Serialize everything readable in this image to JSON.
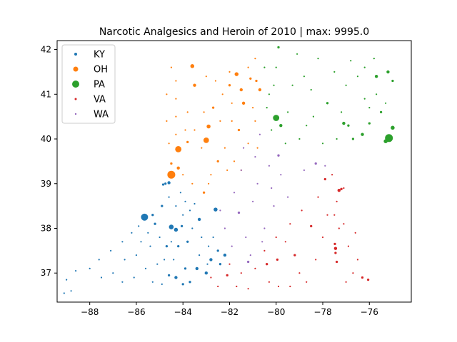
{
  "chart_data": {
    "type": "scatter",
    "title": "Narcotic Analgesics and Heroin of 2010 | max: 9995.0",
    "xlabel": "",
    "ylabel": "",
    "xlim": [
      -89.4,
      -74.2
    ],
    "ylim": [
      36.35,
      42.2
    ],
    "x_ticks": [
      -88,
      -86,
      -84,
      -82,
      -80,
      -78,
      -76
    ],
    "x_tick_labels": [
      "−88",
      "−86",
      "−84",
      "−82",
      "−80",
      "−78",
      "−76"
    ],
    "y_ticks": [
      37,
      38,
      39,
      40,
      41,
      42
    ],
    "y_tick_labels": [
      "37",
      "38",
      "39",
      "40",
      "41",
      "42"
    ],
    "grid": false,
    "legend_position": "upper-left",
    "size_note": "marker size proportional to value (max 9995.0)",
    "series": [
      {
        "name": "KY",
        "color": "#1f77b4",
        "points": [
          [
            -85.65,
            38.25,
            9
          ],
          [
            -84.5,
            38.03,
            6
          ],
          [
            -84.3,
            37.97,
            5
          ],
          [
            -84.6,
            39.02,
            4
          ],
          [
            -84.75,
            39.0,
            3
          ],
          [
            -84.85,
            38.98,
            3
          ],
          [
            -84.9,
            38.5,
            3
          ],
          [
            -85.3,
            38.3,
            3
          ],
          [
            -83.3,
            38.2,
            4
          ],
          [
            -82.6,
            38.42,
            5
          ],
          [
            -82.2,
            37.4,
            4
          ],
          [
            -82.5,
            37.5,
            3
          ],
          [
            -82.8,
            37.3,
            4
          ],
          [
            -83.0,
            37.0,
            4
          ],
          [
            -83.4,
            37.1,
            4
          ],
          [
            -83.9,
            37.1,
            3
          ],
          [
            -84.3,
            36.9,
            4
          ],
          [
            -84.6,
            36.95,
            3
          ],
          [
            -84.0,
            36.75,
            3
          ],
          [
            -83.7,
            36.8,
            3
          ],
          [
            -85.2,
            38.1,
            3
          ],
          [
            -85.5,
            37.9,
            2
          ],
          [
            -85.8,
            37.7,
            2
          ],
          [
            -86.0,
            37.4,
            2
          ],
          [
            -86.5,
            37.3,
            2
          ],
          [
            -87.0,
            37.0,
            2
          ],
          [
            -87.5,
            36.9,
            2
          ],
          [
            -88.0,
            37.1,
            2
          ],
          [
            -88.6,
            37.05,
            2
          ],
          [
            -88.8,
            36.6,
            2
          ],
          [
            -89.1,
            36.55,
            2
          ],
          [
            -89.0,
            36.85,
            2
          ],
          [
            -87.6,
            37.3,
            2
          ],
          [
            -87.1,
            37.5,
            2
          ],
          [
            -86.6,
            37.7,
            2
          ],
          [
            -86.2,
            37.9,
            2
          ],
          [
            -85.9,
            38.05,
            2
          ],
          [
            -85.4,
            37.6,
            2
          ],
          [
            -85.0,
            37.8,
            2
          ],
          [
            -84.7,
            37.6,
            3
          ],
          [
            -84.2,
            37.6,
            3
          ],
          [
            -83.8,
            37.7,
            3
          ],
          [
            -83.6,
            38.0,
            2
          ],
          [
            -83.2,
            37.8,
            2
          ],
          [
            -82.9,
            37.6,
            2
          ],
          [
            -82.7,
            37.8,
            2
          ],
          [
            -82.4,
            37.2,
            3
          ],
          [
            -83.7,
            38.4,
            2
          ],
          [
            -84.0,
            38.3,
            2
          ],
          [
            -84.3,
            38.5,
            2
          ],
          [
            -84.6,
            38.7,
            2
          ],
          [
            -84.1,
            38.8,
            2
          ],
          [
            -83.9,
            38.6,
            2
          ],
          [
            -83.5,
            38.55,
            2
          ],
          [
            -85.1,
            37.2,
            2
          ],
          [
            -85.6,
            37.1,
            2
          ],
          [
            -86.1,
            36.9,
            2
          ],
          [
            -86.6,
            36.8,
            2
          ],
          [
            -85.3,
            36.8,
            2
          ],
          [
            -84.9,
            36.75,
            2
          ],
          [
            -84.4,
            37.3,
            2
          ],
          [
            -84.8,
            37.3,
            2
          ],
          [
            -83.3,
            37.4,
            2
          ],
          [
            -82.95,
            37.2,
            2
          ],
          [
            -84.05,
            38.05,
            3
          ],
          [
            -84.5,
            37.7,
            2
          ]
        ]
      },
      {
        "name": "OH",
        "color": "#ff7f0e",
        "points": [
          [
            -84.5,
            39.2,
            10
          ],
          [
            -84.2,
            39.77,
            8
          ],
          [
            -83.0,
            39.97,
            7
          ],
          [
            -81.7,
            41.45,
            5
          ],
          [
            -83.6,
            41.63,
            5
          ],
          [
            -83.5,
            41.2,
            4
          ],
          [
            -81.5,
            41.1,
            4
          ],
          [
            -80.7,
            41.1,
            4
          ],
          [
            -81.4,
            40.8,
            4
          ],
          [
            -82.9,
            40.28,
            5
          ],
          [
            -84.2,
            39.35,
            4
          ],
          [
            -84.5,
            39.45,
            3
          ],
          [
            -83.8,
            39.93,
            3
          ],
          [
            -82.5,
            39.5,
            3
          ],
          [
            -81.6,
            40.2,
            3
          ],
          [
            -82.0,
            41.2,
            3
          ],
          [
            -80.85,
            41.3,
            3
          ],
          [
            -82.7,
            40.7,
            3
          ],
          [
            -84.3,
            41.3,
            2
          ],
          [
            -84.3,
            40.9,
            2
          ],
          [
            -84.3,
            40.5,
            2
          ],
          [
            -84.3,
            40.1,
            2
          ],
          [
            -83.8,
            40.6,
            2
          ],
          [
            -83.5,
            40.2,
            2
          ],
          [
            -83.2,
            39.8,
            2
          ],
          [
            -82.8,
            39.2,
            2
          ],
          [
            -82.1,
            39.3,
            2
          ],
          [
            -81.8,
            39.5,
            2
          ],
          [
            -81.2,
            39.9,
            2
          ],
          [
            -80.9,
            40.4,
            2
          ],
          [
            -81.0,
            40.7,
            2
          ],
          [
            -81.9,
            40.8,
            2
          ],
          [
            -82.3,
            41.0,
            2
          ],
          [
            -82.6,
            41.3,
            2
          ],
          [
            -83.0,
            41.4,
            2
          ],
          [
            -84.5,
            41.6,
            2
          ],
          [
            -83.1,
            38.8,
            3
          ],
          [
            -82.9,
            39.0,
            2
          ],
          [
            -83.6,
            39.0,
            2
          ],
          [
            -84.0,
            39.2,
            2
          ],
          [
            -82.2,
            39.8,
            2
          ],
          [
            -81.5,
            39.3,
            2
          ],
          [
            -80.8,
            39.8,
            2
          ],
          [
            -81.9,
            40.4,
            2
          ],
          [
            -82.4,
            40.4,
            2
          ],
          [
            -83.1,
            40.6,
            2
          ],
          [
            -83.9,
            40.2,
            2
          ],
          [
            -84.6,
            39.9,
            2
          ],
          [
            -84.7,
            40.4,
            2
          ],
          [
            -84.7,
            41.0,
            2
          ],
          [
            -82.0,
            41.5,
            2
          ],
          [
            -81.2,
            41.6,
            2
          ],
          [
            -80.9,
            41.8,
            2
          ],
          [
            -81.1,
            41.35,
            3
          ]
        ]
      },
      {
        "name": "PA",
        "color": "#2ca02c",
        "points": [
          [
            -75.16,
            40.02,
            10
          ],
          [
            -80.0,
            40.47,
            8
          ],
          [
            -75.0,
            40.25,
            5
          ],
          [
            -75.3,
            39.95,
            5
          ],
          [
            -79.8,
            40.3,
            4
          ],
          [
            -77.1,
            40.35,
            4
          ],
          [
            -76.3,
            40.1,
            4
          ],
          [
            -75.5,
            40.6,
            3
          ],
          [
            -75.2,
            41.5,
            4
          ],
          [
            -75.7,
            41.4,
            4
          ],
          [
            -76.9,
            40.3,
            3
          ],
          [
            -76.0,
            40.35,
            3
          ],
          [
            -76.7,
            40.0,
            3
          ],
          [
            -77.8,
            40.8,
            3
          ],
          [
            -78.4,
            40.5,
            2
          ],
          [
            -79.5,
            40.6,
            2
          ],
          [
            -80.1,
            41.2,
            2
          ],
          [
            -80.0,
            41.6,
            2
          ],
          [
            -79.1,
            41.9,
            2
          ],
          [
            -78.2,
            41.8,
            2
          ],
          [
            -77.0,
            41.2,
            2
          ],
          [
            -76.5,
            41.4,
            2
          ],
          [
            -75.7,
            41.0,
            2
          ],
          [
            -75.0,
            41.3,
            3
          ],
          [
            -76.0,
            40.7,
            2
          ],
          [
            -77.4,
            40.0,
            2
          ],
          [
            -78.0,
            39.9,
            2
          ],
          [
            -79.0,
            40.0,
            2
          ],
          [
            -79.6,
            39.9,
            2
          ],
          [
            -80.2,
            40.2,
            2
          ],
          [
            -80.4,
            40.7,
            2
          ],
          [
            -79.9,
            42.05,
            3
          ],
          [
            -78.8,
            41.4,
            2
          ],
          [
            -78.5,
            41.1,
            2
          ],
          [
            -77.5,
            41.5,
            2
          ],
          [
            -76.8,
            41.75,
            2
          ],
          [
            -76.2,
            41.6,
            2
          ],
          [
            -75.8,
            41.8,
            2
          ],
          [
            -75.3,
            40.8,
            2
          ],
          [
            -76.2,
            40.9,
            2
          ],
          [
            -77.2,
            40.6,
            2
          ],
          [
            -78.7,
            40.3,
            2
          ],
          [
            -79.3,
            41.2,
            2
          ],
          [
            -80.5,
            41.6,
            2
          ],
          [
            -80.3,
            41.0,
            2
          ]
        ]
      },
      {
        "name": "VA",
        "color": "#d62728",
        "points": [
          [
            -77.3,
            38.85,
            4
          ],
          [
            -77.45,
            37.55,
            4
          ],
          [
            -76.3,
            36.9,
            3
          ],
          [
            -76.05,
            36.85,
            3
          ],
          [
            -79.95,
            37.3,
            3
          ],
          [
            -80.4,
            37.2,
            3
          ],
          [
            -79.2,
            37.4,
            3
          ],
          [
            -78.5,
            38.05,
            3
          ],
          [
            -77.4,
            37.25,
            3
          ],
          [
            -77.8,
            38.3,
            2
          ],
          [
            -77.5,
            38.3,
            2
          ],
          [
            -76.5,
            37.3,
            2
          ],
          [
            -82.1,
            36.95,
            3
          ],
          [
            -81.2,
            36.65,
            2
          ],
          [
            -81.7,
            36.7,
            2
          ],
          [
            -82.5,
            36.7,
            2
          ],
          [
            -82.8,
            36.9,
            2
          ],
          [
            -80.9,
            37.1,
            2
          ],
          [
            -80.5,
            37.5,
            2
          ],
          [
            -80.0,
            37.8,
            2
          ],
          [
            -79.4,
            38.1,
            2
          ],
          [
            -78.9,
            38.4,
            2
          ],
          [
            -78.2,
            38.7,
            2
          ],
          [
            -77.9,
            39.1,
            3
          ],
          [
            -77.6,
            39.2,
            2
          ],
          [
            -77.4,
            38.6,
            2
          ],
          [
            -78.0,
            37.8,
            2
          ],
          [
            -78.3,
            37.3,
            2
          ],
          [
            -78.7,
            36.8,
            2
          ],
          [
            -79.4,
            36.7,
            2
          ],
          [
            -79.9,
            36.7,
            2
          ],
          [
            -80.3,
            36.8,
            2
          ],
          [
            -77.0,
            36.8,
            2
          ],
          [
            -76.7,
            37.0,
            2
          ],
          [
            -76.9,
            37.6,
            2
          ],
          [
            -76.6,
            37.9,
            2
          ],
          [
            -77.1,
            38.1,
            2
          ],
          [
            -77.3,
            38.0,
            2
          ],
          [
            -79.0,
            37.0,
            2
          ],
          [
            -79.6,
            37.7,
            2
          ],
          [
            -81.5,
            37.0,
            2
          ],
          [
            -82.0,
            37.2,
            2
          ],
          [
            -77.45,
            37.45,
            3
          ],
          [
            -77.48,
            37.65,
            3
          ],
          [
            -77.2,
            38.88,
            3
          ],
          [
            -77.1,
            38.9,
            2
          ]
        ]
      },
      {
        "name": "WA",
        "color": "#9467bd",
        "points": [
          [
            -81.6,
            38.35,
            3
          ],
          [
            -79.9,
            39.63,
            3
          ],
          [
            -78.3,
            39.45,
            3
          ],
          [
            -80.7,
            40.1,
            2
          ],
          [
            -81.5,
            39.3,
            2
          ],
          [
            -82.2,
            38.0,
            2
          ],
          [
            -80.8,
            39.0,
            2
          ],
          [
            -80.1,
            38.5,
            2
          ],
          [
            -81.3,
            37.8,
            2
          ],
          [
            -81.9,
            37.6,
            2
          ],
          [
            -80.5,
            38.0,
            2
          ],
          [
            -79.8,
            39.2,
            2
          ],
          [
            -78.8,
            39.3,
            2
          ],
          [
            -77.9,
            39.4,
            2
          ],
          [
            -81.0,
            38.6,
            2
          ],
          [
            -80.3,
            39.4,
            2
          ],
          [
            -81.8,
            38.8,
            2
          ],
          [
            -82.4,
            38.4,
            2
          ],
          [
            -81.1,
            37.4,
            2
          ],
          [
            -80.6,
            37.7,
            2
          ],
          [
            -79.5,
            38.7,
            2
          ],
          [
            -80.9,
            39.6,
            2
          ],
          [
            -81.4,
            39.8,
            2
          ],
          [
            -81.2,
            37.25,
            3
          ],
          [
            -80.2,
            38.9,
            2
          ]
        ]
      }
    ]
  }
}
